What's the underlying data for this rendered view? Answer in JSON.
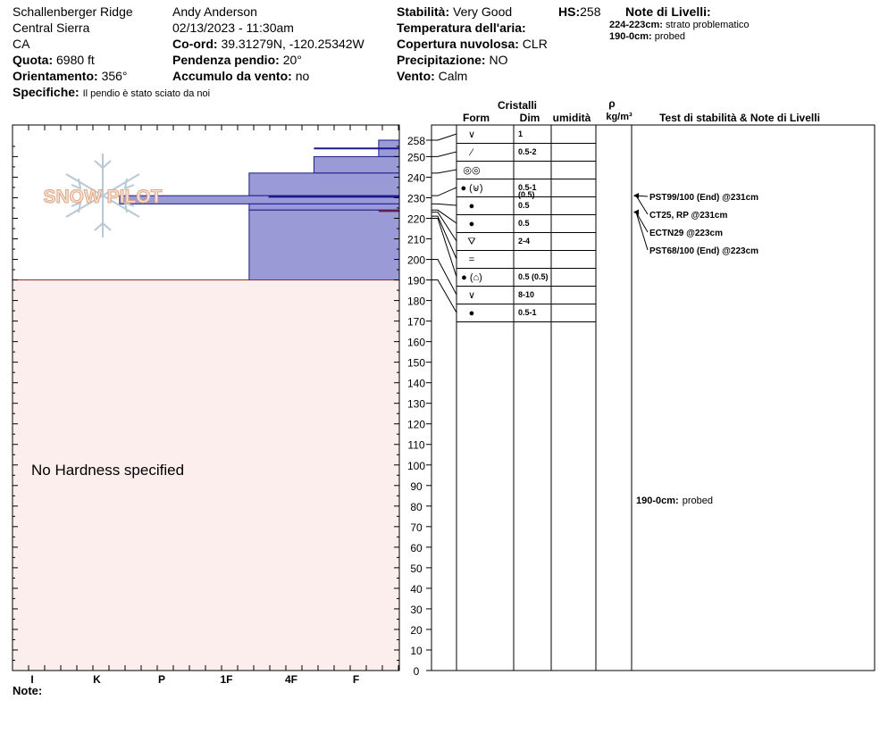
{
  "header": {
    "location": "Schallenberger Ridge",
    "range": "Central Sierra",
    "state": "CA",
    "elevation_label": "Quota:",
    "elevation_value": "6980 ft",
    "aspect_label": "Orientamento:",
    "aspect_value": "356°",
    "specifics_label": "Specifiche:",
    "specifics_value": "Il pendio è stato sciato da noi",
    "observer": "Andy Anderson",
    "datetime": "02/13/2023 - 11:30am",
    "coords_label": "Co-ord:",
    "coords_value": "39.31279N, -120.25342W",
    "slope_label": "Pendenza pendio:",
    "slope_value": "20°",
    "wind_loading_label": "Accumulo da vento:",
    "wind_loading_value": "no",
    "stability_label": "Stabilità:",
    "stability_value": "Very Good",
    "hs_label": "HS:",
    "hs_value": "258",
    "air_temp_label": "Temperatura dell'aria:",
    "sky_label": "Copertura nuvolosa:",
    "sky_value": "CLR",
    "precip_label": "Precipitazione:",
    "precip_value": "NO",
    "wind_label": "Vento:",
    "wind_value": "Calm",
    "layer_notes_title": "Note di Livelli:",
    "layer_notes": [
      {
        "range": "224-223cm:",
        "text": "strato problematico"
      },
      {
        "range": "190-0cm:",
        "text": "probed"
      }
    ]
  },
  "logo_text": "SNOW PILOT",
  "no_hardness_text": "No Hardness specified",
  "notes_label": "Note:",
  "table_headers": {
    "crystals": "Cristalli",
    "form": "Form",
    "size": "Dim",
    "moisture": "umidità",
    "rho": "ρ",
    "density_unit": "kg/m³",
    "tests": "Test di stabilità & Note di Livelli"
  },
  "chart_data": {
    "type": "bar",
    "title": "",
    "xlabel": "",
    "ylabel": "",
    "y_range_cm": [
      0,
      258
    ],
    "y_ticks": [
      258,
      250,
      240,
      230,
      220,
      210,
      200,
      190,
      180,
      170,
      160,
      150,
      140,
      130,
      120,
      110,
      100,
      90,
      80,
      70,
      60,
      50,
      40,
      30,
      20,
      10,
      0
    ],
    "hardness_scale": [
      "I",
      "K",
      "P",
      "1F",
      "4F",
      "F"
    ],
    "hardness_scale_left_to_right": [
      "I",
      "K",
      "P",
      "1F",
      "4F",
      "F"
    ],
    "layers": [
      {
        "top": 258,
        "bottom": 250,
        "hardness_index": 6.35
      },
      {
        "top": 250,
        "bottom": 242,
        "hardness_index": 5.35
      },
      {
        "top": 242,
        "bottom": 231,
        "hardness_index": 4.35
      },
      {
        "top": 231,
        "bottom": 227,
        "hardness_index": 2.35
      },
      {
        "top": 227,
        "bottom": 224,
        "hardness_index": 4.35
      },
      {
        "top": 224,
        "bottom": 190,
        "hardness_index": 4.35
      }
    ],
    "lines": [
      {
        "depth": 254,
        "color": "#1a1a8c",
        "from_index": 5.35
      },
      {
        "depth": 230.5,
        "color": "#1a1a8c",
        "from_index": 4.65
      },
      {
        "depth": 223.5,
        "color": "#7a1a3a",
        "from_index": 6.35
      }
    ],
    "probed_region": {
      "top": 190,
      "bottom": 0
    },
    "colors": {
      "layer": "#9a9ad6",
      "layer_stroke": "#1a1a8c",
      "probed": "#fdeeee",
      "probed_line": "#8b2f2f"
    }
  },
  "crystal_rows": [
    {
      "form": "∨",
      "size": "1",
      "depth": 258
    },
    {
      "form": "⁄",
      "size": "0.5-2",
      "depth": 250
    },
    {
      "form": "◎◎",
      "size": "",
      "depth": 242
    },
    {
      "form": "● (⊌)",
      "size": "0.5-1",
      "size2": "(0.5)",
      "depth": 231
    },
    {
      "form": "●",
      "size": "0.5",
      "depth": 227
    },
    {
      "form": "●",
      "size": "0.5",
      "depth": 224
    },
    {
      "form": "⛛",
      "size": "2-4",
      "depth": 223
    },
    {
      "form": "=",
      "size": "",
      "depth": 221
    },
    {
      "form": "● (⌂)",
      "size": "0.5 (0.5)",
      "depth": 220
    },
    {
      "form": "∨",
      "size": "8-10",
      "depth": 200
    },
    {
      "form": "●",
      "size": "0.5-1",
      "depth": 190
    }
  ],
  "stability_tests": [
    {
      "text": "PST99/100 (End) @231cm",
      "depth": 231
    },
    {
      "text": "CT25, RP @231cm",
      "depth": 231
    },
    {
      "text": "ECTN29 @223cm",
      "depth": 223
    },
    {
      "text": "PST68/100 (End) @223cm",
      "depth": 223
    }
  ],
  "profile_note": {
    "range": "190-0cm:",
    "text": "probed"
  }
}
